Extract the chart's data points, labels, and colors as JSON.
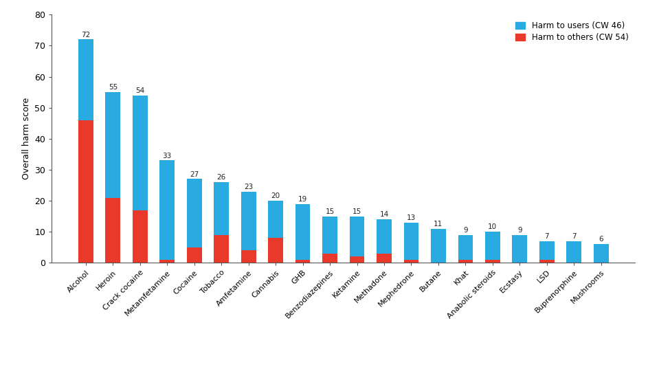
{
  "categories": [
    "Alcohol",
    "Heroin",
    "Crack cocaine",
    "Metamfetamine",
    "Cocaine",
    "Tobacco",
    "Amfetamine",
    "Cannabis",
    "GHB",
    "Benzodiazepines",
    "Ketamine",
    "Methadone",
    "Mephedrone",
    "Butane",
    "Khat",
    "Anabolic steroids",
    "Ecstasy",
    "LSD",
    "Buprenorphine",
    "Mushrooms"
  ],
  "harm_to_users": [
    26,
    34,
    37,
    32,
    22,
    17,
    19,
    12,
    18,
    12,
    13,
    11,
    12,
    11,
    8,
    9,
    9,
    6,
    7,
    6
  ],
  "harm_to_others": [
    46,
    21,
    17,
    1,
    5,
    9,
    4,
    8,
    1,
    3,
    2,
    3,
    1,
    0,
    1,
    1,
    0,
    1,
    0,
    0
  ],
  "totals": [
    72,
    55,
    54,
    33,
    27,
    26,
    23,
    20,
    19,
    15,
    15,
    14,
    13,
    11,
    9,
    10,
    9,
    7,
    7,
    6
  ],
  "color_users": "#29abe2",
  "color_others": "#e8392a",
  "ylabel": "Overall harm score",
  "ylim": [
    0,
    80
  ],
  "yticks": [
    0,
    10,
    20,
    30,
    40,
    50,
    60,
    70,
    80
  ],
  "legend_users": "Harm to users (CW 46)",
  "legend_others": "Harm to others (CW 54)",
  "background_color": "#ffffff",
  "bar_width": 0.55
}
